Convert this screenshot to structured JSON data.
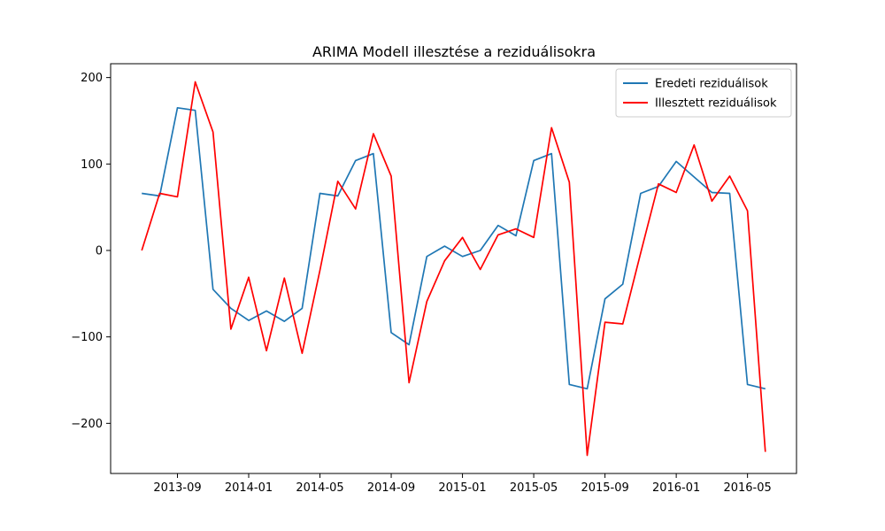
{
  "chart_data": {
    "type": "line",
    "title": "ARIMA Modell illesztése a reziduálisokra",
    "xlabel": "",
    "ylabel": "",
    "x": [
      "2013-07",
      "2013-08",
      "2013-09",
      "2013-10",
      "2013-11",
      "2013-12",
      "2014-01",
      "2014-02",
      "2014-03",
      "2014-04",
      "2014-05",
      "2014-06",
      "2014-07",
      "2014-08",
      "2014-09",
      "2014-10",
      "2014-11",
      "2014-12",
      "2015-01",
      "2015-02",
      "2015-03",
      "2015-04",
      "2015-05",
      "2015-06",
      "2015-07",
      "2015-08",
      "2015-09",
      "2015-10",
      "2015-11",
      "2015-12",
      "2016-01",
      "2016-02",
      "2016-03",
      "2016-04",
      "2016-05",
      "2016-06"
    ],
    "x_ticks": [
      "2013-09",
      "2014-01",
      "2014-05",
      "2014-09",
      "2015-01",
      "2015-05",
      "2015-09",
      "2016-01",
      "2016-05"
    ],
    "y_ticks": [
      200,
      100,
      0,
      -100,
      -200
    ],
    "ylim": [
      -258,
      216
    ],
    "legend_position": "top-right",
    "grid": false,
    "series": [
      {
        "name": "Eredeti reziduálisok",
        "color": "#1f77b4",
        "values": [
          66,
          63,
          165,
          162,
          -45,
          -67,
          -81,
          -70,
          -82,
          -67,
          66,
          63,
          104,
          112,
          -95,
          -109,
          -7,
          5,
          -7,
          0,
          29,
          17,
          104,
          112,
          -155,
          -160,
          -56,
          -39,
          66,
          74,
          103,
          85,
          67,
          66,
          -155,
          -160
        ]
      },
      {
        "name": "Illesztett reziduálisok",
        "color": "#ff0000",
        "values": [
          0,
          66,
          62,
          195,
          137,
          -91,
          -31,
          -116,
          -32,
          -119,
          -23,
          80,
          48,
          135,
          86,
          -153,
          -59,
          -12,
          15,
          -22,
          18,
          25,
          15,
          142,
          79,
          -237,
          -83,
          -85,
          -3,
          77,
          67,
          122,
          57,
          86,
          46,
          -233
        ]
      }
    ]
  }
}
